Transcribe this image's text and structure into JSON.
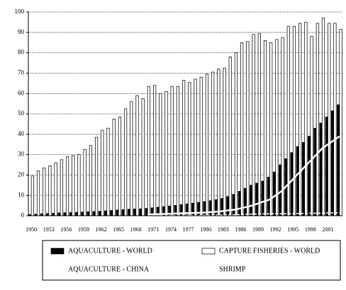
{
  "chart_data": {
    "type": "bar",
    "categories": [
      "1950",
      null,
      null,
      "1953",
      null,
      null,
      "1956",
      null,
      null,
      "1959",
      null,
      null,
      "1962",
      null,
      null,
      "1965",
      null,
      null,
      "1968",
      null,
      null,
      "1971",
      null,
      null,
      "1974",
      null,
      null,
      "1977",
      null,
      null,
      "1980",
      null,
      null,
      "1983",
      null,
      null,
      "1986",
      null,
      null,
      "1989",
      null,
      null,
      "1992",
      null,
      null,
      "1995",
      null,
      null,
      "1998",
      null,
      null,
      "2001",
      null,
      null
    ],
    "series": [
      {
        "name": "AQUACULTURE - WORLD",
        "color": "#000000",
        "kind": "bar",
        "values": [
          0.6,
          0.8,
          1,
          1.1,
          1.2,
          1.4,
          1.5,
          1.6,
          1.7,
          1.8,
          2,
          2.1,
          2.2,
          2.4,
          2.6,
          2.8,
          3,
          3.2,
          3.3,
          3.4,
          3.6,
          3.9,
          4.2,
          4.5,
          4.8,
          5.1,
          5.5,
          5.8,
          6.2,
          6.6,
          7,
          7.4,
          7.9,
          8.5,
          9.4,
          10.5,
          12,
          13.5,
          15,
          16,
          17,
          19,
          21.5,
          25,
          28,
          31,
          34,
          36,
          39,
          43,
          45.5,
          48.5,
          51.5,
          54.5
        ]
      },
      {
        "name": "CAPTURE FISHERIES - WORLD",
        "color": "#ffffff",
        "kind": "bar",
        "values": [
          19.5,
          22,
          23.5,
          24.5,
          26,
          27.5,
          29,
          29.5,
          30,
          32.5,
          34.5,
          38.5,
          42,
          43,
          47.5,
          48.5,
          52.5,
          56,
          59,
          57.5,
          63.5,
          64,
          60,
          61,
          63.5,
          63.5,
          66.5,
          65.5,
          67,
          68,
          69.5,
          70.5,
          72,
          72.5,
          78,
          80,
          85,
          85.5,
          89,
          89.5,
          86,
          85,
          86.5,
          87.5,
          93,
          93,
          94.5,
          95,
          88,
          94.5,
          97,
          94.5,
          94.5,
          91.5
        ]
      },
      {
        "name": "AQUACULTURE - CHINA",
        "color": "#ffffff",
        "kind": "line",
        "values": [
          null,
          null,
          null,
          null,
          null,
          null,
          null,
          null,
          null,
          null,
          null,
          null,
          null,
          null,
          null,
          null,
          null,
          null,
          null,
          null,
          0.6,
          0.7,
          0.8,
          0.9,
          1,
          1.1,
          1.2,
          1.3,
          1.4,
          1.5,
          1.6,
          1.8,
          2,
          2.3,
          2.7,
          3,
          3.6,
          4.3,
          5,
          6,
          7,
          8,
          10,
          12,
          15,
          18,
          21,
          24,
          27,
          30,
          33,
          35,
          37,
          39
        ]
      },
      {
        "name": "SHRIMP",
        "color": "#ffffff",
        "kind": "line",
        "values": [
          null,
          null,
          null,
          null,
          null,
          null,
          null,
          null,
          null,
          null,
          null,
          null,
          null,
          null,
          null,
          null,
          null,
          null,
          null,
          null,
          0.1,
          0.1,
          0.1,
          0.1,
          0.1,
          0.1,
          0.2,
          0.2,
          0.2,
          0.2,
          0.2,
          0.3,
          0.3,
          0.3,
          0.4,
          0.5,
          0.6,
          0.7,
          0.8,
          0.9,
          0.9,
          0.9,
          1,
          1,
          1,
          1,
          1.1,
          1.1,
          1.2,
          1.2,
          1.3,
          1.4,
          1.4,
          1.5
        ]
      }
    ],
    "ylim": [
      0,
      100
    ],
    "yticks": [
      0,
      10,
      20,
      30,
      40,
      50,
      60,
      70,
      80,
      90,
      100
    ],
    "grid": true
  }
}
